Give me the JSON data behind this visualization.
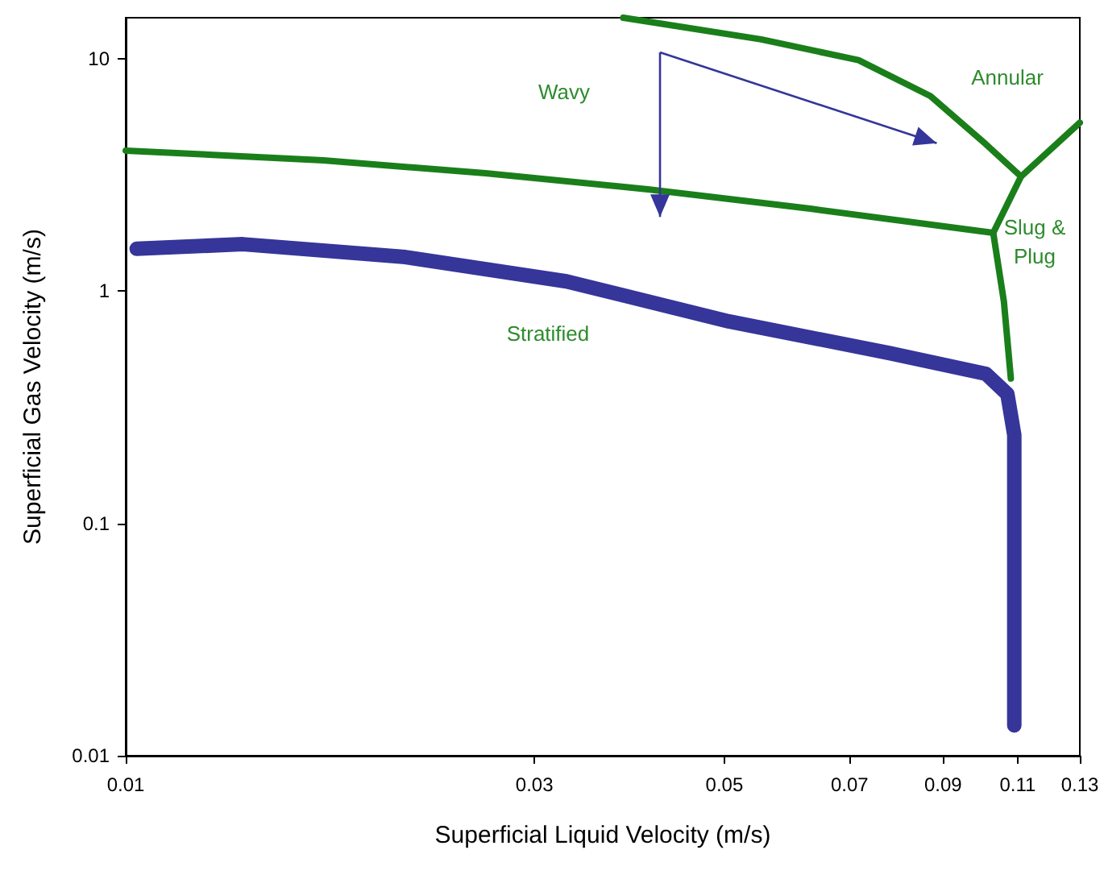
{
  "chart_data": {
    "type": "line",
    "xlabel": "Superficial Liquid Velocity (m/s)",
    "ylabel": "Superficial Gas Velocity (m/s)",
    "log": "xy",
    "grid": false,
    "marker": "none",
    "line_style": "solid",
    "xlim": [
      0.01,
      0.13
    ],
    "xticks": [
      0.01,
      0.03,
      0.05,
      0.07,
      0.09,
      0.11,
      0.13
    ],
    "ylim": [
      0.01,
      15
    ],
    "yticks": [
      0.01,
      0.1,
      1,
      10
    ],
    "series": [
      {
        "color": "#35359a",
        "x": [
          0.0103,
          0.0137,
          0.0212,
          0.0327,
          0.0506,
          0.078,
          0.101,
          0.107,
          0.109,
          0.109,
          0.109
        ],
        "values": [
          1.52,
          1.59,
          1.4,
          1.1,
          0.74,
          0.54,
          0.44,
          0.36,
          0.24,
          0.067,
          0.0135
        ]
      },
      {
        "color": "#1a7f1a",
        "x": [
          0.01,
          0.017,
          0.0263,
          0.0407,
          0.063,
          0.103,
          0.111,
          0.13
        ],
        "values": [
          4.02,
          3.65,
          3.21,
          2.74,
          2.26,
          1.78,
          3.11,
          5.3
        ]
      },
      {
        "color": "#1a7f1a",
        "x": [
          0.0381,
          0.0552,
          0.0717,
          0.087,
          0.101,
          0.111
        ],
        "values": [
          15,
          12.1,
          9.86,
          6.9,
          4.28,
          3.11
        ]
      },
      {
        "color": "#1a7f1a",
        "x": [
          0.103,
          0.106,
          0.108
        ],
        "values": [
          1.78,
          0.9,
          0.42
        ]
      }
    ],
    "annotations": [
      "Wavy",
      "Annular",
      "Slug &\nPlug",
      "Stratified"
    ]
  }
}
